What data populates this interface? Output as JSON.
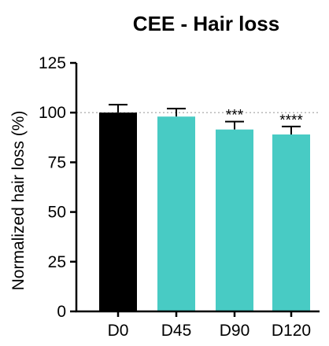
{
  "chart_data": {
    "type": "bar",
    "title": "CEE - Hair loss",
    "xlabel": "",
    "ylabel": "Normalized hair loss (%)",
    "ylim": [
      0,
      125
    ],
    "yticks": [
      0,
      25,
      50,
      75,
      100,
      125
    ],
    "categories": [
      "D0",
      "D45",
      "D90",
      "D120"
    ],
    "values": [
      100,
      98,
      91.5,
      89
    ],
    "errors": [
      4,
      4,
      4,
      4
    ],
    "significance": [
      "",
      "",
      "***",
      "****"
    ],
    "reference_line": 100,
    "colors": {
      "baseline": "#000000",
      "treatment": "#48cbc4",
      "reference_line": "#b8b8b8"
    },
    "grid": false,
    "legend": "none"
  }
}
